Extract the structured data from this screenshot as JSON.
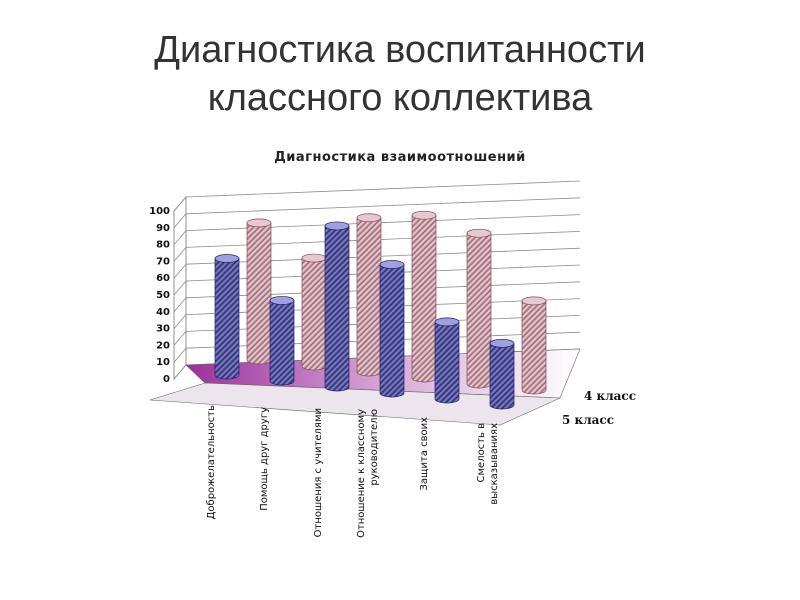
{
  "slide": {
    "title_line1": "Диагностика воспитанности",
    "title_line2": "классного коллектива"
  },
  "chart_data": {
    "type": "bar",
    "title": "Диагностика взаимоотношений",
    "categories": [
      [
        "Доброжелательность"
      ],
      [
        "Помощь друг другу"
      ],
      [
        "Отношения с учителями"
      ],
      [
        "Отношение к классному",
        "руководителю"
      ],
      [
        "Защита своих"
      ],
      [
        "Смелость в",
        "высказываниях"
      ]
    ],
    "series": [
      {
        "name": "4 класс",
        "values": [
          80,
          63,
          90,
          95,
          88,
          52
        ],
        "color": "#c9a0aa"
      },
      {
        "name": "5 класс",
        "values": [
          68,
          47,
          94,
          75,
          45,
          36
        ],
        "color": "#6060a8"
      }
    ],
    "ylim": [
      0,
      100
    ],
    "yticks": [
      0,
      10,
      20,
      30,
      40,
      50,
      60,
      70,
      80,
      90,
      100
    ],
    "grid": true,
    "projection": "3d-cylinder"
  }
}
